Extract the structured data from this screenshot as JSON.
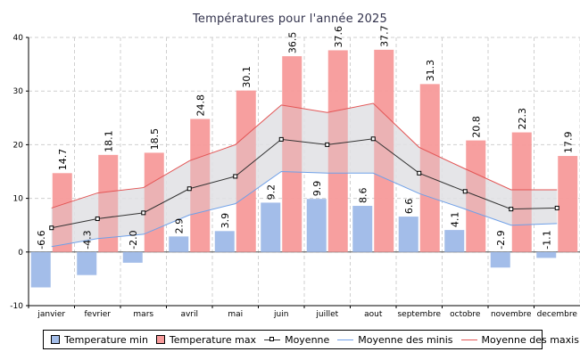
{
  "chart_data": {
    "type": "bar",
    "title": "Températures pour l'année 2025",
    "categories": [
      "janvier",
      "fevrier",
      "mars",
      "avril",
      "mai",
      "juin",
      "juillet",
      "aout",
      "septembre",
      "octobre",
      "novembre",
      "decembre"
    ],
    "series": [
      {
        "name": "Temperature min",
        "kind": "bar",
        "color": "#a3bde9",
        "values": [
          -6.6,
          -4.3,
          -2.0,
          2.9,
          3.9,
          9.2,
          9.9,
          8.6,
          6.6,
          4.1,
          -2.9,
          -1.1
        ]
      },
      {
        "name": "Temperature max",
        "kind": "bar",
        "color": "#f79a9a",
        "values": [
          14.7,
          18.1,
          18.5,
          24.8,
          30.1,
          36.5,
          37.6,
          37.7,
          31.3,
          20.8,
          22.3,
          17.9
        ]
      },
      {
        "name": "Moyenne",
        "kind": "line",
        "color": "#333333",
        "values": [
          4.5,
          6.2,
          7.3,
          11.8,
          14.1,
          21.0,
          20.0,
          21.1,
          14.7,
          11.3,
          8.0,
          8.2
        ]
      },
      {
        "name": "Moyenne des minis",
        "kind": "line",
        "color": "#6fa0e8",
        "values": [
          1.0,
          2.5,
          3.3,
          6.9,
          9.0,
          15.0,
          14.7,
          14.7,
          10.9,
          8.0,
          5.0,
          5.3
        ]
      },
      {
        "name": "Moyenne des maxis",
        "kind": "line",
        "color": "#e35555",
        "values": [
          8.2,
          11.0,
          12.0,
          17.0,
          20.0,
          27.4,
          26.0,
          27.7,
          19.5,
          15.5,
          11.6,
          11.6
        ]
      }
    ],
    "ylim": [
      -10,
      40
    ],
    "yticks": [
      -10,
      0,
      10,
      20,
      30,
      40
    ],
    "grid": true,
    "legend_position": "bottom"
  }
}
